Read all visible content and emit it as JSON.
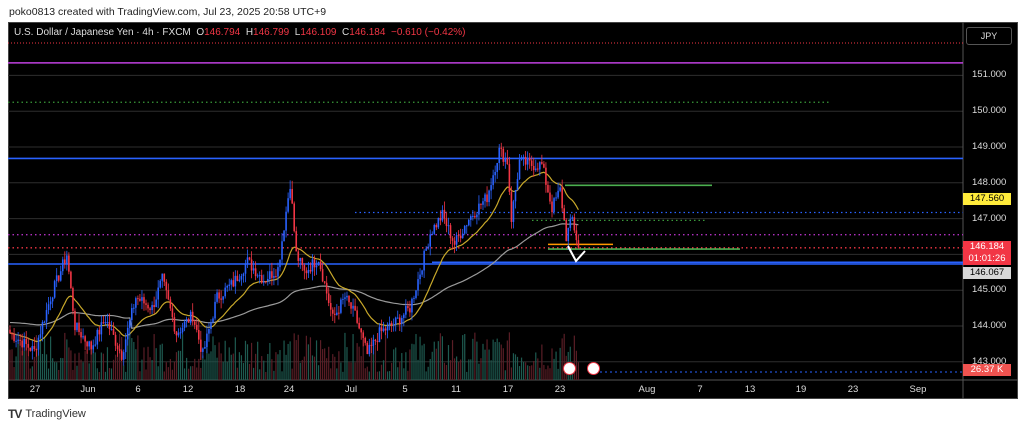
{
  "credit": "poko0813 created with TradingView.com, Jul 23, 2025 20:58 UTC+9",
  "legend": {
    "symbol": "U.S. Dollar / Japanese Yen · 4h · FXCM",
    "o_label": "O",
    "o": "146.794",
    "h_label": "H",
    "h": "146.799",
    "l_label": "L",
    "l": "146.109",
    "c_label": "C",
    "c": "146.184",
    "change": "−0.610 (−0.42%)"
  },
  "currency_button": "JPY",
  "watermark": "TradingView",
  "colors": {
    "bull": "#2962ff",
    "bear": "#f23645",
    "ma_fast": "#c8a82a",
    "ma_slow": "#9a9a9a",
    "bg": "#000000"
  },
  "chart_data": {
    "type": "candlestick",
    "title": "USDJPY 4h FXCM",
    "y_ticks": [
      "151.000",
      "150.000",
      "149.000",
      "148.000",
      "147.000",
      "145.000",
      "144.000",
      "143.000"
    ],
    "y_tick_values": [
      151,
      150,
      149,
      148,
      147,
      145,
      144,
      143
    ],
    "x_ticks": [
      "27",
      "Jun",
      "6",
      "12",
      "18",
      "24",
      "Jul",
      "5",
      "11",
      "17",
      "23",
      "Aug",
      "7",
      "13",
      "19",
      "23",
      "Sep"
    ],
    "ylim": [
      142.6,
      152.0
    ],
    "close_waypoints": [
      [
        0,
        143.8
      ],
      [
        12,
        143.3
      ],
      [
        20,
        144.8
      ],
      [
        28,
        146.0
      ],
      [
        32,
        144.0
      ],
      [
        40,
        143.4
      ],
      [
        47,
        144.2
      ],
      [
        55,
        143.2
      ],
      [
        62,
        144.8
      ],
      [
        70,
        144.5
      ],
      [
        75,
        145.3
      ],
      [
        82,
        143.8
      ],
      [
        90,
        144.3
      ],
      [
        95,
        143.2
      ],
      [
        102,
        144.8
      ],
      [
        110,
        145.2
      ],
      [
        117,
        145.8
      ],
      [
        125,
        145.3
      ],
      [
        132,
        145.6
      ],
      [
        138,
        148.0
      ],
      [
        141,
        146.0
      ],
      [
        145,
        145.5
      ],
      [
        152,
        145.9
      ],
      [
        159,
        144.2
      ],
      [
        165,
        144.8
      ],
      [
        170,
        144.3
      ],
      [
        176,
        143.2
      ],
      [
        182,
        143.8
      ],
      [
        190,
        144.1
      ],
      [
        197,
        144.5
      ],
      [
        202,
        145.5
      ],
      [
        207,
        146.6
      ],
      [
        213,
        147.1
      ],
      [
        219,
        146.3
      ],
      [
        226,
        147.0
      ],
      [
        235,
        147.6
      ],
      [
        241,
        148.9
      ],
      [
        245,
        148.6
      ],
      [
        247,
        147.0
      ],
      [
        251,
        148.6
      ],
      [
        257,
        148.5
      ],
      [
        262,
        148.5
      ],
      [
        267,
        147.3
      ],
      [
        271,
        147.8
      ],
      [
        274,
        146.5
      ],
      [
        277,
        147.0
      ],
      [
        280,
        146.184
      ]
    ],
    "levels": [
      {
        "name": "magenta-resistance",
        "price": 151.35,
        "color": "#c040e0",
        "style": "solid"
      },
      {
        "name": "green-dotted-level",
        "price": 150.25,
        "color": "#3a9a3a",
        "style": "dotted"
      },
      {
        "name": "blue-resistance",
        "price": 148.68,
        "color": "#2962ff",
        "style": "solid"
      },
      {
        "name": "green-target-upper",
        "price": 147.93,
        "color": "#4caf50",
        "style": "solid"
      },
      {
        "name": "blue-dotted-level",
        "price": 147.17,
        "color": "#2962ff",
        "style": "dotted"
      },
      {
        "name": "green-dotted-level-2",
        "price": 146.95,
        "color": "#3a9a3a",
        "style": "dotted"
      },
      {
        "name": "purple-dotted-level",
        "price": 146.55,
        "color": "#b030c0",
        "style": "dotted"
      },
      {
        "name": "orange-level",
        "price": 146.28,
        "color": "#ff9800",
        "style": "solid"
      },
      {
        "name": "current-price-line",
        "price": 146.184,
        "color": "#f23645",
        "style": "dotted"
      },
      {
        "name": "green-target-lower",
        "price": 146.15,
        "color": "#4caf50",
        "style": "solid"
      },
      {
        "name": "blue-support",
        "price": 145.78,
        "color": "#2962ff",
        "style": "solid"
      }
    ],
    "price_tags": {
      "ma": "147.560",
      "last": "146.184",
      "countdown": "01:01:26",
      "ma_slow": "146.067",
      "volume": "26.37 K"
    },
    "annotation": "down arrow"
  }
}
